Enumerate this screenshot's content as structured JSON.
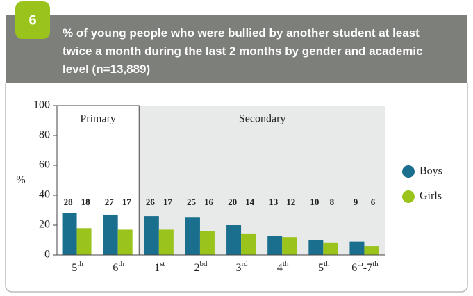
{
  "header": {
    "number": "6"
  },
  "chart_data": {
    "type": "bar",
    "title_lines": [
      "% of young people who were bullied by another student at least",
      "twice a month during the last 2 months by gender and academic",
      "level (n=13,889)"
    ],
    "y_label": "%",
    "groups": [
      "Primary",
      "Secondary"
    ],
    "categories": [
      "5th",
      "6th",
      "1st",
      "2bd",
      "3rd",
      "4th",
      "5th",
      "6th-7th"
    ],
    "series": [
      {
        "name": "Boys",
        "color": "#1a6e8e",
        "values": [
          28,
          27,
          26,
          25,
          20,
          13,
          10,
          9
        ]
      },
      {
        "name": "Girls",
        "color": "#9ac31c",
        "values": [
          18,
          17,
          17,
          16,
          14,
          12,
          8,
          6
        ]
      }
    ],
    "ylim": [
      0,
      100
    ],
    "yticks": [
      0,
      20,
      40,
      60,
      80,
      100
    ],
    "grid": false,
    "legend": "right"
  }
}
